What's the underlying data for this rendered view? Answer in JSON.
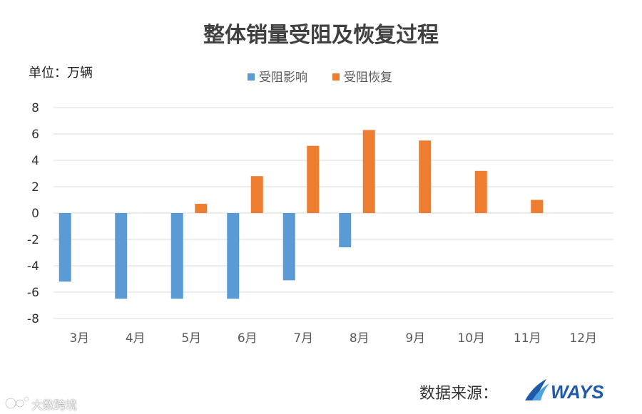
{
  "chart_data": {
    "type": "bar",
    "title": "整体销量受阻及恢复过程",
    "unit_label": "单位：万辆",
    "categories": [
      "3月",
      "4月",
      "5月",
      "6月",
      "7月",
      "8月",
      "9月",
      "10月",
      "11月",
      "12月"
    ],
    "series": [
      {
        "name": "受阻影响",
        "color": "#5b9bd5",
        "values": [
          -5.2,
          -6.5,
          -6.5,
          -6.5,
          -5.1,
          -2.6,
          null,
          null,
          null,
          null
        ]
      },
      {
        "name": "受阻恢复",
        "color": "#ed7d31",
        "values": [
          null,
          null,
          0.7,
          2.8,
          5.1,
          6.3,
          5.5,
          3.2,
          1.0,
          null
        ]
      }
    ],
    "ylim": [
      -8,
      8
    ],
    "yticks": [
      8,
      6,
      4,
      2,
      0,
      -2,
      -4,
      -6,
      -8
    ],
    "grid": true,
    "legend_position": "top-center"
  },
  "footer": {
    "source_label": "数据来源：",
    "brand": "WAYS",
    "watermark": "大数跨境"
  },
  "colors": {
    "gridline": "#d9d9d9",
    "axis_text": "#595959",
    "brand_blue": "#1f5aa8"
  }
}
